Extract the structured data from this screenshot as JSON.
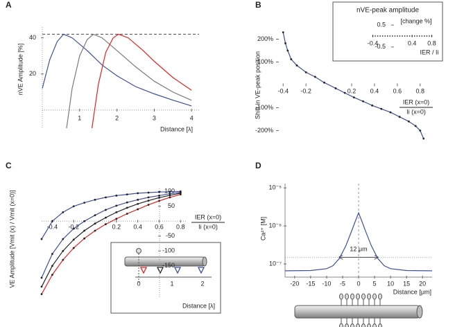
{
  "chart_data": [
    {
      "type": "line",
      "panel": "A",
      "xlabel": "Distance [λ]",
      "ylabel": "nVE Amplitude [%]",
      "xlim": [
        0,
        4.2
      ],
      "ylim": [
        -10,
        46
      ],
      "xticks": [
        1,
        2,
        3,
        4
      ],
      "yticks": [
        20,
        40
      ],
      "hline": 42,
      "series": [
        {
          "color": "#3a4fa0",
          "x": [
            0,
            0.2,
            0.4,
            0.57,
            0.8,
            1.2,
            1.6,
            2,
            2.5,
            3,
            3.5,
            4
          ],
          "values": [
            12,
            28,
            38,
            42,
            40,
            33,
            25,
            19,
            13,
            9,
            5.5,
            2.3
          ]
        },
        {
          "color": "#7a7a7a",
          "x": [
            0.65,
            0.8,
            1,
            1.2,
            1.37,
            1.6,
            2,
            2.5,
            3,
            3.5,
            4
          ],
          "values": [
            -10,
            12,
            30,
            39,
            42,
            40,
            33,
            24,
            16,
            10,
            5.4
          ]
        },
        {
          "color": "#e8201c",
          "x": [
            1.33,
            1.5,
            1.7,
            1.9,
            2.04,
            2.3,
            2.7,
            3,
            3.5,
            4
          ],
          "values": [
            -10,
            14,
            32,
            40,
            42,
            40,
            33,
            27,
            18,
            11
          ]
        }
      ]
    },
    {
      "type": "line",
      "panel": "B",
      "ylabel": "Shift in VE-peak position",
      "xlabel": {
        "numerator": "IER (x=0)",
        "denominator": "Ii (x=0)"
      },
      "xlim": [
        -0.45,
        0.85
      ],
      "ylim": [
        -250,
        250
      ],
      "xticks": [
        -0.4,
        -0.2,
        0.2,
        0.4,
        0.6,
        0.8
      ],
      "yticks": [
        {
          "value": 200,
          "label": "200%"
        },
        {
          "value": 100,
          "label": "100%"
        },
        {
          "value": -100,
          "label": "-100%"
        },
        {
          "value": -200,
          "label": "-200%"
        }
      ],
      "markers": true,
      "series": [
        {
          "color": "#3a4fa0",
          "x": [
            -0.4,
            -0.38,
            -0.36,
            -0.33,
            -0.28,
            -0.2,
            -0.12,
            -0.04,
            0.06,
            0.14,
            0.22,
            0.3,
            0.38,
            0.46,
            0.54,
            0.62,
            0.7,
            0.76,
            0.8,
            0.83
          ],
          "values": [
            230,
            182,
            150,
            112,
            85,
            55,
            35,
            10,
            -15,
            -35,
            -55,
            -72,
            -90,
            -105,
            -120,
            -140,
            -160,
            -180,
            -200,
            -235
          ]
        }
      ]
    },
    {
      "type": "scatter",
      "title": "nVE-peak amplitude",
      "subtitle": "[change %]",
      "xlabel": "IER / Ii",
      "xlim": [
        -0.45,
        0.85
      ],
      "ylim": [
        -0.6,
        0.6
      ],
      "xticks": [
        -0.4,
        0.4,
        0.8
      ],
      "yticks": [
        0.5,
        -0.5
      ],
      "series": [
        {
          "color": "#222222",
          "x": [
            -0.4,
            -0.35,
            -0.3,
            -0.25,
            -0.2,
            -0.15,
            -0.1,
            -0.05,
            0,
            0.05,
            0.1,
            0.15,
            0.2,
            0.25,
            0.3,
            0.35,
            0.4,
            0.45,
            0.5,
            0.55,
            0.6,
            0.65,
            0.7,
            0.75,
            0.8
          ],
          "values": [
            0,
            0,
            0,
            0,
            0,
            0,
            0,
            0,
            0,
            0,
            0,
            0,
            0,
            0,
            0,
            0,
            0,
            0,
            0,
            0,
            0,
            0,
            0,
            0,
            0
          ]
        }
      ]
    },
    {
      "type": "line",
      "panel": "C",
      "ylabel": "VE Amplitude [Vmit (x) / Vmit (x=0)]",
      "xlabel": {
        "numerator": "IER (x=0)",
        "denominator": "Ii (x=0)"
      },
      "xlim": [
        -0.5,
        0.85
      ],
      "ylim": [
        -260,
        110
      ],
      "xticks": [
        -0.4,
        -0.2,
        0.2,
        0.4,
        0.6,
        0.8
      ],
      "yticks": [
        100,
        50,
        -50,
        -100,
        -150
      ],
      "markers": true,
      "diagram": {
        "ticks": [
          "0",
          "1",
          "2"
        ],
        "xlabel": "Distance [λ]"
      },
      "series": [
        {
          "color": "#3a4fa0",
          "x": [
            -0.5,
            -0.4,
            -0.3,
            -0.2,
            -0.1,
            0,
            0.1,
            0.2,
            0.3,
            0.4,
            0.5,
            0.6,
            0.7,
            0.8
          ],
          "values": [
            -60,
            0,
            30,
            50,
            62,
            72,
            80,
            86,
            90,
            94,
            96,
            98,
            99,
            100
          ]
        },
        {
          "color": "#3a4fa0",
          "x": [
            -0.5,
            -0.4,
            -0.3,
            -0.2,
            -0.1,
            0,
            0.1,
            0.2,
            0.3,
            0.4,
            0.5,
            0.6,
            0.7,
            0.8
          ],
          "values": [
            -190,
            -110,
            -60,
            -25,
            0,
            20,
            38,
            52,
            63,
            72,
            80,
            86,
            92,
            97
          ]
        },
        {
          "color": "#222222",
          "x": [
            -0.5,
            -0.4,
            -0.3,
            -0.2,
            -0.1,
            0,
            0.1,
            0.2,
            0.3,
            0.4,
            0.5,
            0.6,
            0.7,
            0.8
          ],
          "values": [
            -220,
            -150,
            -100,
            -62,
            -32,
            -8,
            12,
            30,
            45,
            58,
            69,
            79,
            87,
            94
          ]
        },
        {
          "color": "#e8201c",
          "x": [
            -0.5,
            -0.4,
            -0.3,
            -0.2,
            -0.1,
            0,
            0.1,
            0.2,
            0.3,
            0.4,
            0.5,
            0.6,
            0.7,
            0.8
          ],
          "values": [
            -245,
            -180,
            -130,
            -90,
            -58,
            -32,
            -10,
            8,
            25,
            40,
            55,
            68,
            80,
            90
          ]
        }
      ]
    },
    {
      "type": "line",
      "panel": "D",
      "xlabel": "Distance [μm]",
      "ylabel": "Ca²⁺ [M]",
      "log_y": true,
      "xlim": [
        -23,
        23
      ],
      "ylim": [
        4.5e-08,
        1.3e-05
      ],
      "xticks": [
        -20,
        -15,
        -10,
        -5,
        0,
        5,
        10,
        15,
        20
      ],
      "yticks": [
        {
          "value": 1e-07,
          "label": "10⁻⁷"
        },
        {
          "value": 1e-06,
          "label": "10⁻⁶"
        },
        {
          "value": 1e-05,
          "label": "10⁻⁵"
        }
      ],
      "hline": 1.5e-07,
      "annotation": {
        "text": "12 μm",
        "x": [
          -6,
          6
        ]
      },
      "series": [
        {
          "color": "#3a4fa0",
          "x": [
            -23,
            -15,
            -10,
            -8,
            -6,
            -4,
            -2,
            -1,
            0,
            1,
            2,
            4,
            6,
            8,
            10,
            15,
            23
          ],
          "values": [
            6.6e-08,
            6.7e-08,
            7.5e-08,
            9e-08,
            1.4e-07,
            3e-07,
            8e-07,
            1.35e-06,
            2.2e-06,
            1.35e-06,
            8e-07,
            3e-07,
            1.4e-07,
            9e-08,
            7.5e-08,
            6.7e-08,
            6.6e-08
          ]
        }
      ]
    }
  ]
}
